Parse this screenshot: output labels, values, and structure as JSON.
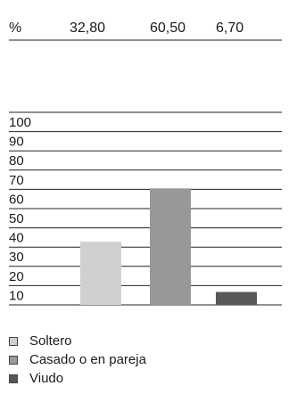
{
  "chart_data": {
    "type": "bar",
    "unit_label": "%",
    "categories": [
      "Soltero",
      "Casado o en pareja",
      "Viudo"
    ],
    "values": [
      32.8,
      60.5,
      6.7
    ],
    "value_labels": [
      "32,80",
      "60,50",
      "6,70"
    ],
    "colors": [
      "#d0d0d2",
      "#98989b",
      "#58585a"
    ],
    "yticks": [
      10,
      20,
      30,
      40,
      50,
      60,
      70,
      80,
      90,
      100
    ],
    "ylim": [
      0,
      100
    ],
    "grid": true,
    "legend_position": "bottom-left"
  },
  "legend": [
    {
      "label": "Soltero",
      "color": "#d0d0d2"
    },
    {
      "label": "Casado o en pareja",
      "color": "#98989b"
    },
    {
      "label": "Viudo",
      "color": "#58585a"
    }
  ]
}
